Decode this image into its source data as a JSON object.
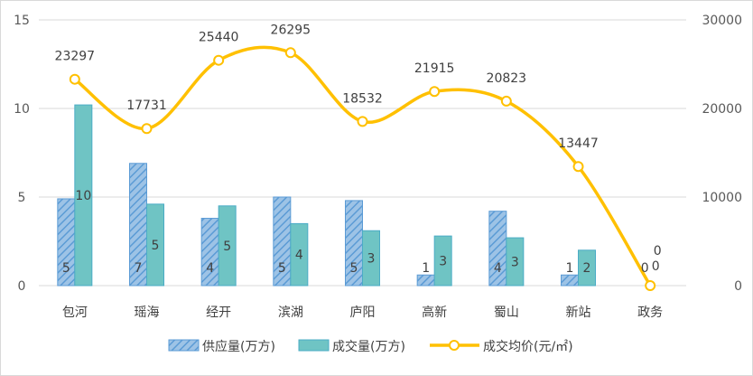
{
  "chart_data": {
    "type": "bar",
    "categories": [
      "包河",
      "瑶海",
      "经开",
      "滨湖",
      "庐阳",
      "高新",
      "蜀山",
      "新站",
      "政务"
    ],
    "y_left": {
      "lim": [
        0,
        15
      ],
      "ticks": [
        "0",
        "5",
        "10",
        "15"
      ]
    },
    "y_right": {
      "lim": [
        0,
        30000
      ],
      "ticks": [
        "0",
        "10000",
        "20000",
        "30000"
      ]
    },
    "grid": true,
    "legend_position": "bottom",
    "series": [
      {
        "name": "供应量(万方)",
        "kind": "bar",
        "axis": "left",
        "color": "#5B9BD5",
        "pattern": "diagonal-stripes",
        "values": [
          4.9,
          6.9,
          3.8,
          5.0,
          4.8,
          0.6,
          4.2,
          0.6,
          0
        ],
        "labels": [
          "5",
          "7",
          "4",
          "5",
          "5",
          "1",
          "4",
          "1",
          "0"
        ]
      },
      {
        "name": "成交量(万方)",
        "kind": "bar",
        "axis": "left",
        "color": "#4BACC6",
        "pattern": "solid",
        "values": [
          10.2,
          4.6,
          4.5,
          3.5,
          3.1,
          2.8,
          2.7,
          2.0,
          0
        ],
        "labels": [
          "10",
          "5",
          "5",
          "4",
          "3",
          "3",
          "3",
          "2",
          "0"
        ]
      },
      {
        "name": "成交均价(元/㎡)",
        "kind": "line",
        "axis": "right",
        "color": "#FFC000",
        "smooth": true,
        "values": [
          23297,
          17731,
          25440,
          26295,
          18532,
          21915,
          20823,
          13447,
          0
        ],
        "labels": [
          "23297",
          "17731",
          "25440",
          "26295",
          "18532",
          "21915",
          "20823",
          "13447",
          "0"
        ]
      }
    ]
  }
}
